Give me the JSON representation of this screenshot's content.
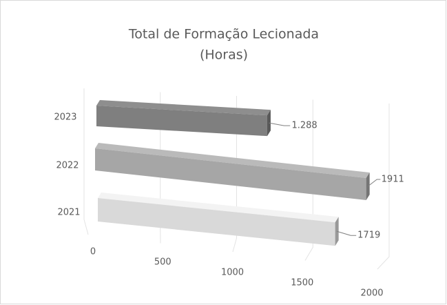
{
  "chart_data": {
    "type": "bar3d_horizontal",
    "title": "Total de Formação Lecionada",
    "subtitle": "(Horas)",
    "categories": [
      "2021",
      "2022",
      "2023"
    ],
    "values": [
      1719,
      1911,
      1288
    ],
    "value_labels": [
      "1719",
      "1911",
      "1.288"
    ],
    "colors": [
      "#d9d9d9",
      "#a6a6a6",
      "#7f7f7f"
    ],
    "xlim": [
      0,
      2000
    ],
    "xticks": [
      0,
      500,
      1000,
      1500,
      2000
    ],
    "grid": true
  }
}
